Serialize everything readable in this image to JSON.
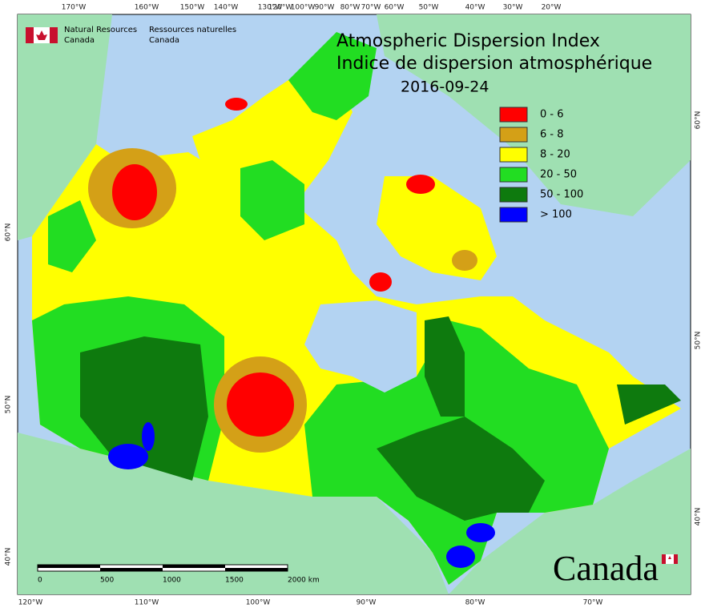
{
  "agency": {
    "en": [
      "Natural Resources",
      "Canada"
    ],
    "fr": [
      "Ressources naturelles",
      "Canada"
    ]
  },
  "title": {
    "lines": [
      "Atmospheric Dispersion Index",
      "Indice de dispersion atmosphérique"
    ],
    "date": "2016-09-24"
  },
  "legend": [
    {
      "label": "0 - 6",
      "color": "#ff0000"
    },
    {
      "label": "6 - 8",
      "color": "#d4a017"
    },
    {
      "label": "8 - 20",
      "color": "#ffff00"
    },
    {
      "label": "20 - 50",
      "color": "#22dd22"
    },
    {
      "label": "50 - 100",
      "color": "#0e7a0e"
    },
    {
      "label": "> 100",
      "color": "#0000ff"
    }
  ],
  "graticule": {
    "top": [
      "170°W",
      "160°W",
      "150°W",
      "140°W",
      "130°W",
      "120°W",
      "100°W",
      "90°W",
      "80°W",
      "70°W",
      "60°W",
      "50°W",
      "40°W",
      "30°W",
      "20°W"
    ],
    "bottom": [
      "120°W",
      "110°W",
      "100°W",
      "90°W",
      "80°W",
      "70°W"
    ],
    "left": [
      "60°N",
      "50°N",
      "40°N"
    ],
    "right": [
      "60°N",
      "50°N",
      "40°N"
    ]
  },
  "scale_bar": [
    "0",
    "500",
    "1000",
    "1500",
    "2000 km"
  ],
  "wordmark": "Canada"
}
